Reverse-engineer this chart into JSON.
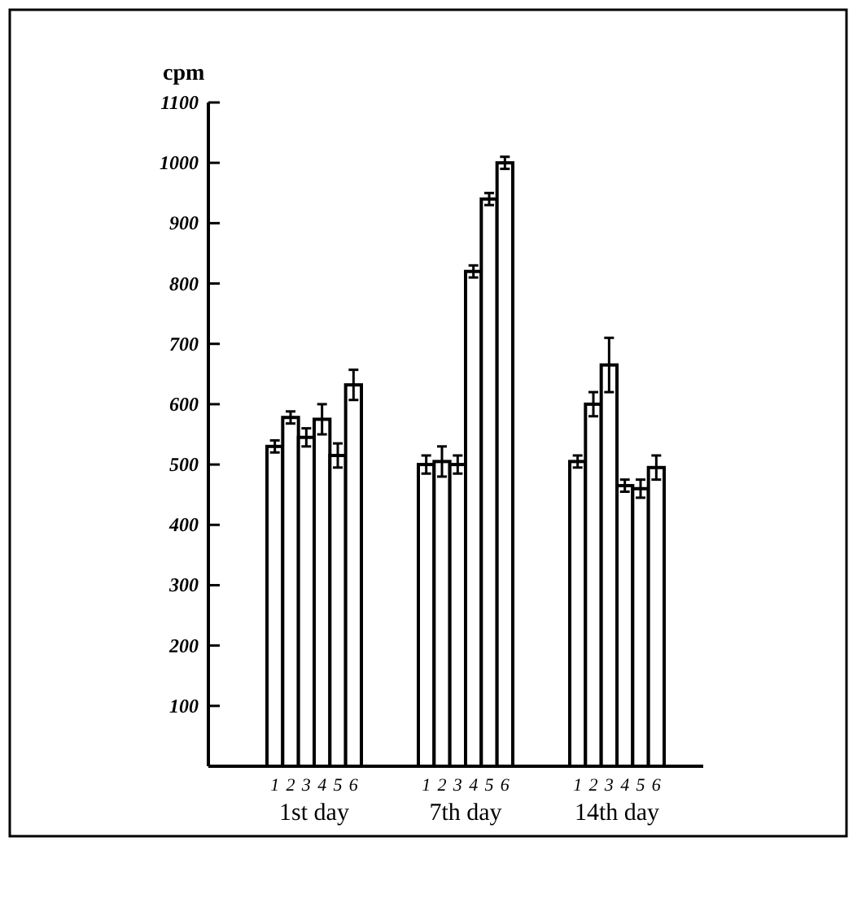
{
  "chart_data": {
    "type": "bar",
    "ylabel": "cpm",
    "categories": [
      "1st day",
      "7th day",
      "14th day"
    ],
    "series": [
      {
        "name": "1",
        "color": "#ffffff",
        "values": [
          530,
          500,
          505
        ],
        "errors": [
          10,
          15,
          10
        ]
      },
      {
        "name": "2",
        "color": "#ffffff",
        "values": [
          578,
          505,
          600
        ],
        "errors": [
          10,
          25,
          20
        ]
      },
      {
        "name": "3",
        "color": "#ffffff",
        "values": [
          545,
          500,
          665
        ],
        "errors": [
          15,
          15,
          45
        ]
      },
      {
        "name": "4",
        "color": "#ffffff",
        "values": [
          575,
          820,
          465
        ],
        "errors": [
          25,
          10,
          10
        ]
      },
      {
        "name": "5",
        "color": "#ffffff",
        "values": [
          515,
          940,
          460
        ],
        "errors": [
          20,
          10,
          15
        ]
      },
      {
        "name": "6",
        "color": "#ffffff",
        "values": [
          632,
          1000,
          495
        ],
        "errors": [
          25,
          10,
          20
        ]
      }
    ],
    "ylim": [
      0,
      1100
    ],
    "yticks": [
      100,
      200,
      300,
      400,
      500,
      600,
      700,
      800,
      900,
      1000,
      1100
    ],
    "grid": false,
    "legend": false
  }
}
